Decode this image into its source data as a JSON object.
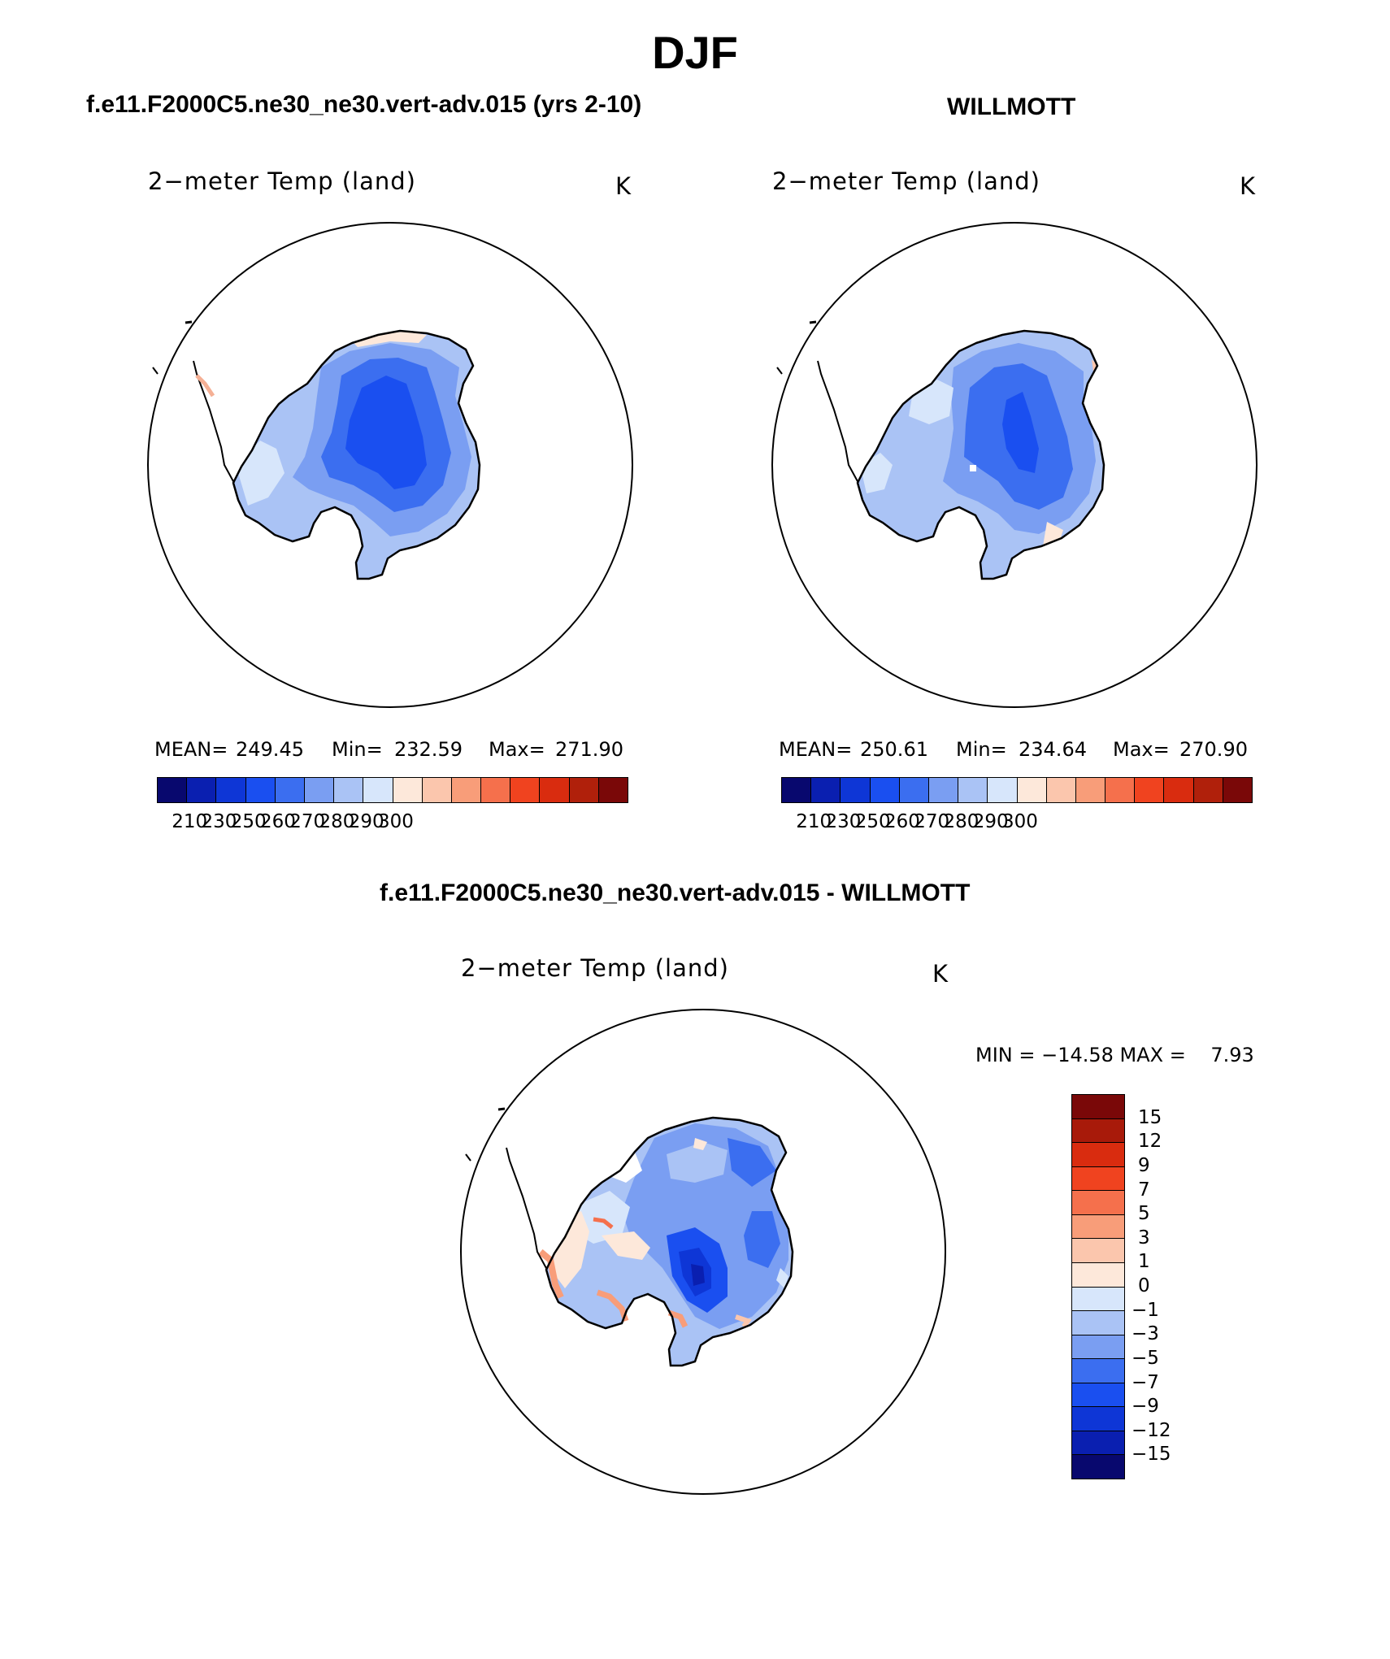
{
  "title": "DJF",
  "panel_left": {
    "case_title": "f.e11.F2000C5.ne30_ne30.vert-adv.015 (yrs 2-10)",
    "variable_label": "2−meter Temp (land)",
    "units": "K",
    "mean_label": "MEAN=",
    "mean_value": "249.45",
    "min_label": "Min=",
    "min_value": "232.59",
    "max_label": "Max=",
    "max_value": "271.90"
  },
  "panel_right": {
    "case_title": "WILLMOTT",
    "variable_label": "2−meter Temp (land)",
    "units": "K",
    "mean_label": "MEAN=",
    "mean_value": "250.61",
    "min_label": "Min=",
    "min_value": "234.64",
    "max_label": "Max=",
    "max_value": "270.90"
  },
  "panel_diff": {
    "case_title": "f.e11.F2000C5.ne30_ne30.vert-adv.015 - WILLMOTT",
    "variable_label": "2−meter Temp (land)",
    "units": "K",
    "minmax_text": "MIN = −14.58 MAX =    7.93"
  },
  "abs_colorbar": {
    "colors": [
      "#08086e",
      "#0a1fb0",
      "#0e36d6",
      "#1a4ff0",
      "#3b6ef0",
      "#7a9ef2",
      "#aac3f5",
      "#d7e6fb",
      "#fde8da",
      "#fbc6ad",
      "#f89d79",
      "#f5704c",
      "#f0431f",
      "#d92c0f",
      "#b0200b",
      "#7a0808"
    ],
    "tick_labels": [
      "210",
      "230",
      "250",
      "260",
      "270",
      "280",
      "290",
      "300"
    ]
  },
  "diff_colorbar": {
    "colors_top_to_bottom": [
      "#7a0808",
      "#a81a0a",
      "#d92c0f",
      "#f0431f",
      "#f5704c",
      "#f89d79",
      "#fbc6ad",
      "#fde8da",
      "#d7e6fb",
      "#aac3f5",
      "#7a9ef2",
      "#3b6ef0",
      "#1a4ff0",
      "#0e36d6",
      "#0a1fb0",
      "#08086e"
    ],
    "tick_labels_top_to_bottom": [
      "15",
      "12",
      "9",
      "7",
      "5",
      "3",
      "1",
      "0",
      "−1",
      "−3",
      "−5",
      "−7",
      "−9",
      "−12",
      "−15"
    ]
  }
}
